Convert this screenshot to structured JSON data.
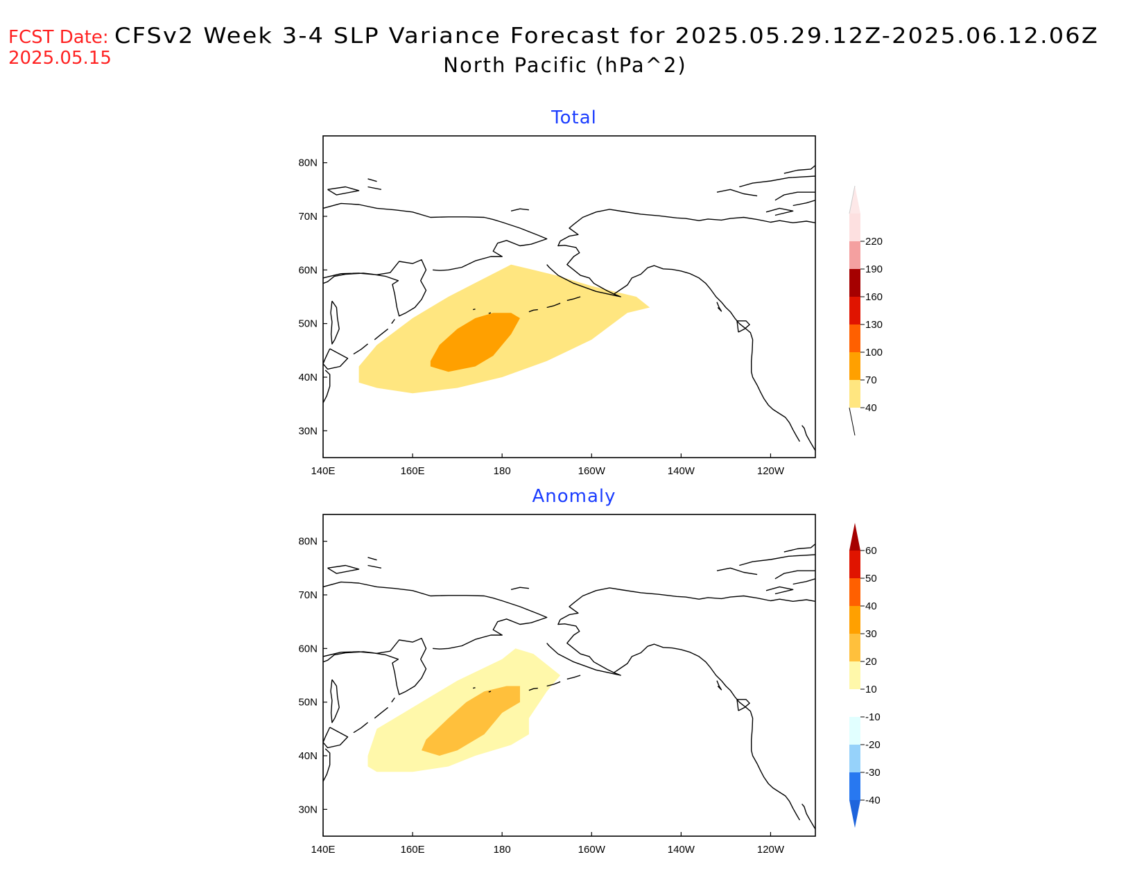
{
  "header": {
    "fcst_label": "FCST Date:",
    "fcst_date": "2025.05.15",
    "title": "CFSv2 Week 3-4 SLP Variance Forecast for 2025.05.29.12Z-2025.06.12.06Z",
    "subtitle": "North Pacific (hPa^2)"
  },
  "map": {
    "lon_range": [
      140,
      250
    ],
    "lat_range": [
      25,
      85
    ],
    "x_ticks": [
      "140E",
      "160E",
      "180",
      "160W",
      "140W",
      "120W"
    ],
    "y_ticks": [
      "30N",
      "40N",
      "50N",
      "60N",
      "70N",
      "80N"
    ]
  },
  "panels": [
    {
      "title": "Total",
      "colorbar": {
        "levels": [
          "40",
          "70",
          "100",
          "130",
          "160",
          "190",
          "220"
        ],
        "colors": [
          "#ffe680",
          "#ffa000",
          "#ff6000",
          "#e01400",
          "#a50000",
          "#f4a0a0",
          "#fde0e0"
        ],
        "top_arrow_color": "#fde8e8",
        "bottom_arrow_color": "#ffffff"
      }
    },
    {
      "title": "Anomaly",
      "colorbar": {
        "levels": [
          "-40",
          "-30",
          "-20",
          "-10",
          "10",
          "20",
          "30",
          "40",
          "50",
          "60"
        ],
        "colors": [
          "#2878f0",
          "#96d2fa",
          "#e1ffff",
          "#ffffff",
          "#fff8aa",
          "#ffc03c",
          "#ffa000",
          "#ff6000",
          "#e01400"
        ],
        "top_arrow_color": "#a50000",
        "bottom_arrow_color": "#1e64dc"
      }
    }
  ],
  "chart_data": [
    {
      "type": "heatmap",
      "title": "Total",
      "units": "hPa^2",
      "levels": [
        40,
        70,
        100,
        130,
        160,
        190,
        220
      ],
      "regions": [
        {
          "level": 40,
          "lon_lat": [
            [
              152,
              38
            ],
            [
              160,
              37
            ],
            [
              170,
              38
            ],
            [
              180,
              40
            ],
            [
              190,
              43
            ],
            [
              200,
              47
            ],
            [
              208,
              52
            ],
            [
              213,
              53
            ],
            [
              210,
              55
            ],
            [
              200,
              57
            ],
            [
              192,
              59
            ],
            [
              187,
              60
            ],
            [
              182,
              61
            ],
            [
              175,
              58
            ],
            [
              168,
              55
            ],
            [
              160,
              51
            ],
            [
              152,
              46
            ],
            [
              148,
              42
            ],
            [
              148,
              39
            ]
          ]
        },
        {
          "level": 70,
          "lon_lat": [
            [
              164,
              42
            ],
            [
              168,
              41
            ],
            [
              174,
              42
            ],
            [
              178,
              44
            ],
            [
              182,
              48
            ],
            [
              184,
              51
            ],
            [
              182,
              52
            ],
            [
              178,
              52
            ],
            [
              174,
              51
            ],
            [
              170,
              49
            ],
            [
              166,
              46
            ],
            [
              164,
              43
            ]
          ]
        }
      ]
    },
    {
      "type": "heatmap",
      "title": "Anomaly",
      "units": "hPa^2",
      "levels": [
        -40,
        -30,
        -20,
        -10,
        10,
        20,
        30,
        40,
        50,
        60
      ],
      "regions": [
        {
          "level": 10,
          "lon_lat": [
            [
              152,
              37
            ],
            [
              160,
              37
            ],
            [
              168,
              38
            ],
            [
              174,
              40
            ],
            [
              182,
              42
            ],
            [
              186,
              44
            ],
            [
              186,
              47
            ],
            [
              190,
              52
            ],
            [
              193,
              55
            ],
            [
              190,
              57
            ],
            [
              187,
              59
            ],
            [
              183,
              60
            ],
            [
              180,
              58
            ],
            [
              175,
              56
            ],
            [
              170,
              54
            ],
            [
              164,
              51
            ],
            [
              158,
              48
            ],
            [
              152,
              45
            ],
            [
              150,
              40
            ],
            [
              150,
              38
            ]
          ]
        },
        {
          "level": 20,
          "lon_lat": [
            [
              162,
              41
            ],
            [
              166,
              40
            ],
            [
              170,
              41
            ],
            [
              176,
              44
            ],
            [
              180,
              48
            ],
            [
              184,
              50
            ],
            [
              184,
              53
            ],
            [
              181,
              53
            ],
            [
              176,
              52
            ],
            [
              172,
              50
            ],
            [
              168,
              47
            ],
            [
              163,
              43
            ]
          ]
        }
      ]
    }
  ]
}
